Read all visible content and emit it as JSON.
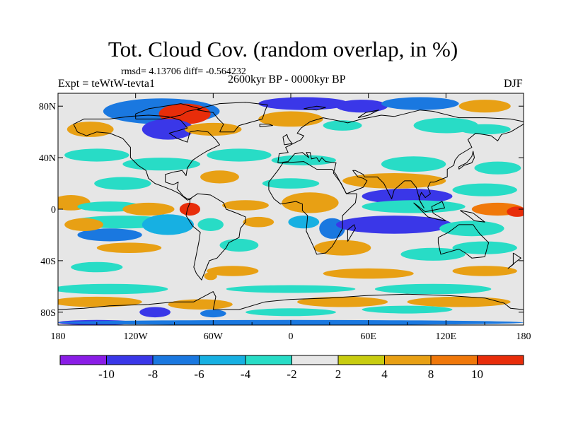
{
  "title": "Tot. Cloud Cov. (random overlap, in %)",
  "stats": "rmsd= 4.13706 diff= -0.564232",
  "experiment": "Expt = teWtW-tevta1",
  "period": "2600kyr BP - 0000kyr BP",
  "season": "DJF",
  "colors": {
    "frame": "#000000",
    "land_outline": "#000000",
    "background": "#ffffff",
    "neutral": "#e6e6e6"
  },
  "chart_data": {
    "type": "heatmap",
    "projection": "cylindrical-equidistant",
    "xlim": [
      -180,
      180
    ],
    "ylim": [
      -90,
      90
    ],
    "x_ticks": [
      {
        "value": -180,
        "label": "180"
      },
      {
        "value": -120,
        "label": "120W"
      },
      {
        "value": -60,
        "label": "60W"
      },
      {
        "value": 0,
        "label": "0"
      },
      {
        "value": 60,
        "label": "60E"
      },
      {
        "value": 120,
        "label": "120E"
      },
      {
        "value": 180,
        "label": "180"
      }
    ],
    "y_ticks": [
      {
        "value": 80,
        "label": "80N"
      },
      {
        "value": 40,
        "label": "40N"
      },
      {
        "value": 0,
        "label": "0"
      },
      {
        "value": -40,
        "label": "40S"
      },
      {
        "value": -80,
        "label": "80S"
      }
    ],
    "colorbar": {
      "levels": [
        -10,
        -8,
        -6,
        -4,
        -2,
        2,
        4,
        8,
        10
      ],
      "labels": [
        "-10",
        "-8",
        "-6",
        "-4",
        "-2",
        "2",
        "4",
        "8",
        "10"
      ],
      "colors": [
        "#8a1de6",
        "#3a37e8",
        "#1a78e0",
        "#17b0e2",
        "#28dcc6",
        "#e6e6e6",
        "#c8cc10",
        "#e8a014",
        "#f0780a",
        "#e82d0a"
      ]
    },
    "fields": [
      {
        "lon": -100,
        "lat": 76,
        "rx": 45,
        "ry": 10,
        "value": -8
      },
      {
        "lon": -82,
        "lat": 74,
        "rx": 20,
        "ry": 8,
        "value": 11
      },
      {
        "lon": -95,
        "lat": 62,
        "rx": 20,
        "ry": 8,
        "value": -10
      },
      {
        "lon": -155,
        "lat": 62,
        "rx": 18,
        "ry": 6,
        "value": 5
      },
      {
        "lon": -60,
        "lat": 62,
        "rx": 22,
        "ry": 5,
        "value": 5
      },
      {
        "lon": 10,
        "lat": 82,
        "rx": 35,
        "ry": 5,
        "value": -9
      },
      {
        "lon": 55,
        "lat": 80,
        "rx": 20,
        "ry": 5,
        "value": -10
      },
      {
        "lon": 100,
        "lat": 82,
        "rx": 30,
        "ry": 5,
        "value": -8
      },
      {
        "lon": 150,
        "lat": 80,
        "rx": 20,
        "ry": 5,
        "value": 5
      },
      {
        "lon": 0,
        "lat": 70,
        "rx": 25,
        "ry": 6,
        "value": 5
      },
      {
        "lon": 40,
        "lat": 65,
        "rx": 15,
        "ry": 4,
        "value": -3
      },
      {
        "lon": 120,
        "lat": 65,
        "rx": 25,
        "ry": 6,
        "value": -3
      },
      {
        "lon": 150,
        "lat": 62,
        "rx": 20,
        "ry": 4,
        "value": -3
      },
      {
        "lon": -150,
        "lat": 42,
        "rx": 25,
        "ry": 5,
        "value": -3
      },
      {
        "lon": -100,
        "lat": 35,
        "rx": 30,
        "ry": 5,
        "value": -3
      },
      {
        "lon": -40,
        "lat": 42,
        "rx": 25,
        "ry": 5,
        "value": -3
      },
      {
        "lon": 10,
        "lat": 38,
        "rx": 25,
        "ry": 4,
        "value": -3
      },
      {
        "lon": 95,
        "lat": 35,
        "rx": 25,
        "ry": 6,
        "value": -3
      },
      {
        "lon": 160,
        "lat": 32,
        "rx": 18,
        "ry": 5,
        "value": -3
      },
      {
        "lon": -130,
        "lat": 20,
        "rx": 22,
        "ry": 5,
        "value": -4
      },
      {
        "lon": -55,
        "lat": 25,
        "rx": 15,
        "ry": 5,
        "value": 5
      },
      {
        "lon": 0,
        "lat": 20,
        "rx": 22,
        "ry": 4,
        "value": -3
      },
      {
        "lon": 80,
        "lat": 22,
        "rx": 40,
        "ry": 6,
        "value": 5
      },
      {
        "lon": 150,
        "lat": 15,
        "rx": 25,
        "ry": 5,
        "value": -3
      },
      {
        "lon": -170,
        "lat": 5,
        "rx": 15,
        "ry": 6,
        "value": 5
      },
      {
        "lon": -140,
        "lat": 2,
        "rx": 25,
        "ry": 4,
        "value": -3
      },
      {
        "lon": -110,
        "lat": 0,
        "rx": 20,
        "ry": 5,
        "value": 5
      },
      {
        "lon": -78,
        "lat": 0,
        "rx": 8,
        "ry": 5,
        "value": 11
      },
      {
        "lon": -35,
        "lat": 3,
        "rx": 18,
        "ry": 4,
        "value": 5
      },
      {
        "lon": 15,
        "lat": 5,
        "rx": 22,
        "ry": 8,
        "value": 6
      },
      {
        "lon": 90,
        "lat": 10,
        "rx": 35,
        "ry": 6,
        "value": -10
      },
      {
        "lon": 95,
        "lat": 2,
        "rx": 40,
        "ry": 5,
        "value": -3
      },
      {
        "lon": 160,
        "lat": 0,
        "rx": 20,
        "ry": 5,
        "value": 8
      },
      {
        "lon": 175,
        "lat": -2,
        "rx": 8,
        "ry": 4,
        "value": 11
      },
      {
        "lon": -130,
        "lat": -10,
        "rx": 40,
        "ry": 5,
        "value": -3
      },
      {
        "lon": -140,
        "lat": -20,
        "rx": 25,
        "ry": 5,
        "value": -8
      },
      {
        "lon": -95,
        "lat": -12,
        "rx": 20,
        "ry": 8,
        "value": -5
      },
      {
        "lon": -160,
        "lat": -12,
        "rx": 15,
        "ry": 5,
        "value": 5
      },
      {
        "lon": -62,
        "lat": -12,
        "rx": 10,
        "ry": 5,
        "value": -4
      },
      {
        "lon": -25,
        "lat": -10,
        "rx": 12,
        "ry": 4,
        "value": 5
      },
      {
        "lon": 10,
        "lat": -10,
        "rx": 12,
        "ry": 5,
        "value": -5
      },
      {
        "lon": 32,
        "lat": -15,
        "rx": 10,
        "ry": 8,
        "value": -8
      },
      {
        "lon": 80,
        "lat": -12,
        "rx": 45,
        "ry": 7,
        "value": -9
      },
      {
        "lon": 140,
        "lat": -15,
        "rx": 25,
        "ry": 6,
        "value": -4
      },
      {
        "lon": 150,
        "lat": -30,
        "rx": 25,
        "ry": 5,
        "value": -3
      },
      {
        "lon": -125,
        "lat": -30,
        "rx": 25,
        "ry": 4,
        "value": 5
      },
      {
        "lon": -40,
        "lat": -28,
        "rx": 15,
        "ry": 5,
        "value": -3
      },
      {
        "lon": 40,
        "lat": -30,
        "rx": 22,
        "ry": 6,
        "value": 6
      },
      {
        "lon": 110,
        "lat": -35,
        "rx": 25,
        "ry": 5,
        "value": -3
      },
      {
        "lon": -150,
        "lat": -45,
        "rx": 20,
        "ry": 4,
        "value": -3
      },
      {
        "lon": -45,
        "lat": -48,
        "rx": 20,
        "ry": 4,
        "value": 5
      },
      {
        "lon": -62,
        "lat": -52,
        "rx": 5,
        "ry": 3,
        "value": 7
      },
      {
        "lon": 60,
        "lat": -50,
        "rx": 35,
        "ry": 4,
        "value": 5
      },
      {
        "lon": 150,
        "lat": -48,
        "rx": 25,
        "ry": 4,
        "value": 5
      },
      {
        "lon": -140,
        "lat": -62,
        "rx": 45,
        "ry": 4,
        "value": -3
      },
      {
        "lon": 0,
        "lat": -62,
        "rx": 50,
        "ry": 3,
        "value": -3
      },
      {
        "lon": 110,
        "lat": -62,
        "rx": 45,
        "ry": 4,
        "value": -3
      },
      {
        "lon": -150,
        "lat": -72,
        "rx": 35,
        "ry": 4,
        "value": 5
      },
      {
        "lon": -70,
        "lat": -74,
        "rx": 25,
        "ry": 4,
        "value": 5
      },
      {
        "lon": 40,
        "lat": -72,
        "rx": 35,
        "ry": 4,
        "value": 5
      },
      {
        "lon": 130,
        "lat": -72,
        "rx": 40,
        "ry": 4,
        "value": 5
      },
      {
        "lon": -105,
        "lat": -80,
        "rx": 12,
        "ry": 4,
        "value": -10
      },
      {
        "lon": -60,
        "lat": -81,
        "rx": 10,
        "ry": 3,
        "value": -8
      },
      {
        "lon": 0,
        "lat": -80,
        "rx": 35,
        "ry": 3,
        "value": -3
      },
      {
        "lon": 90,
        "lat": -78,
        "rx": 35,
        "ry": 3,
        "value": -3
      },
      {
        "lon": -150,
        "lat": -88,
        "rx": 30,
        "ry": 2,
        "value": -10
      },
      {
        "lon": 0,
        "lat": -88,
        "rx": 180,
        "ry": 2,
        "value": -7
      }
    ]
  }
}
